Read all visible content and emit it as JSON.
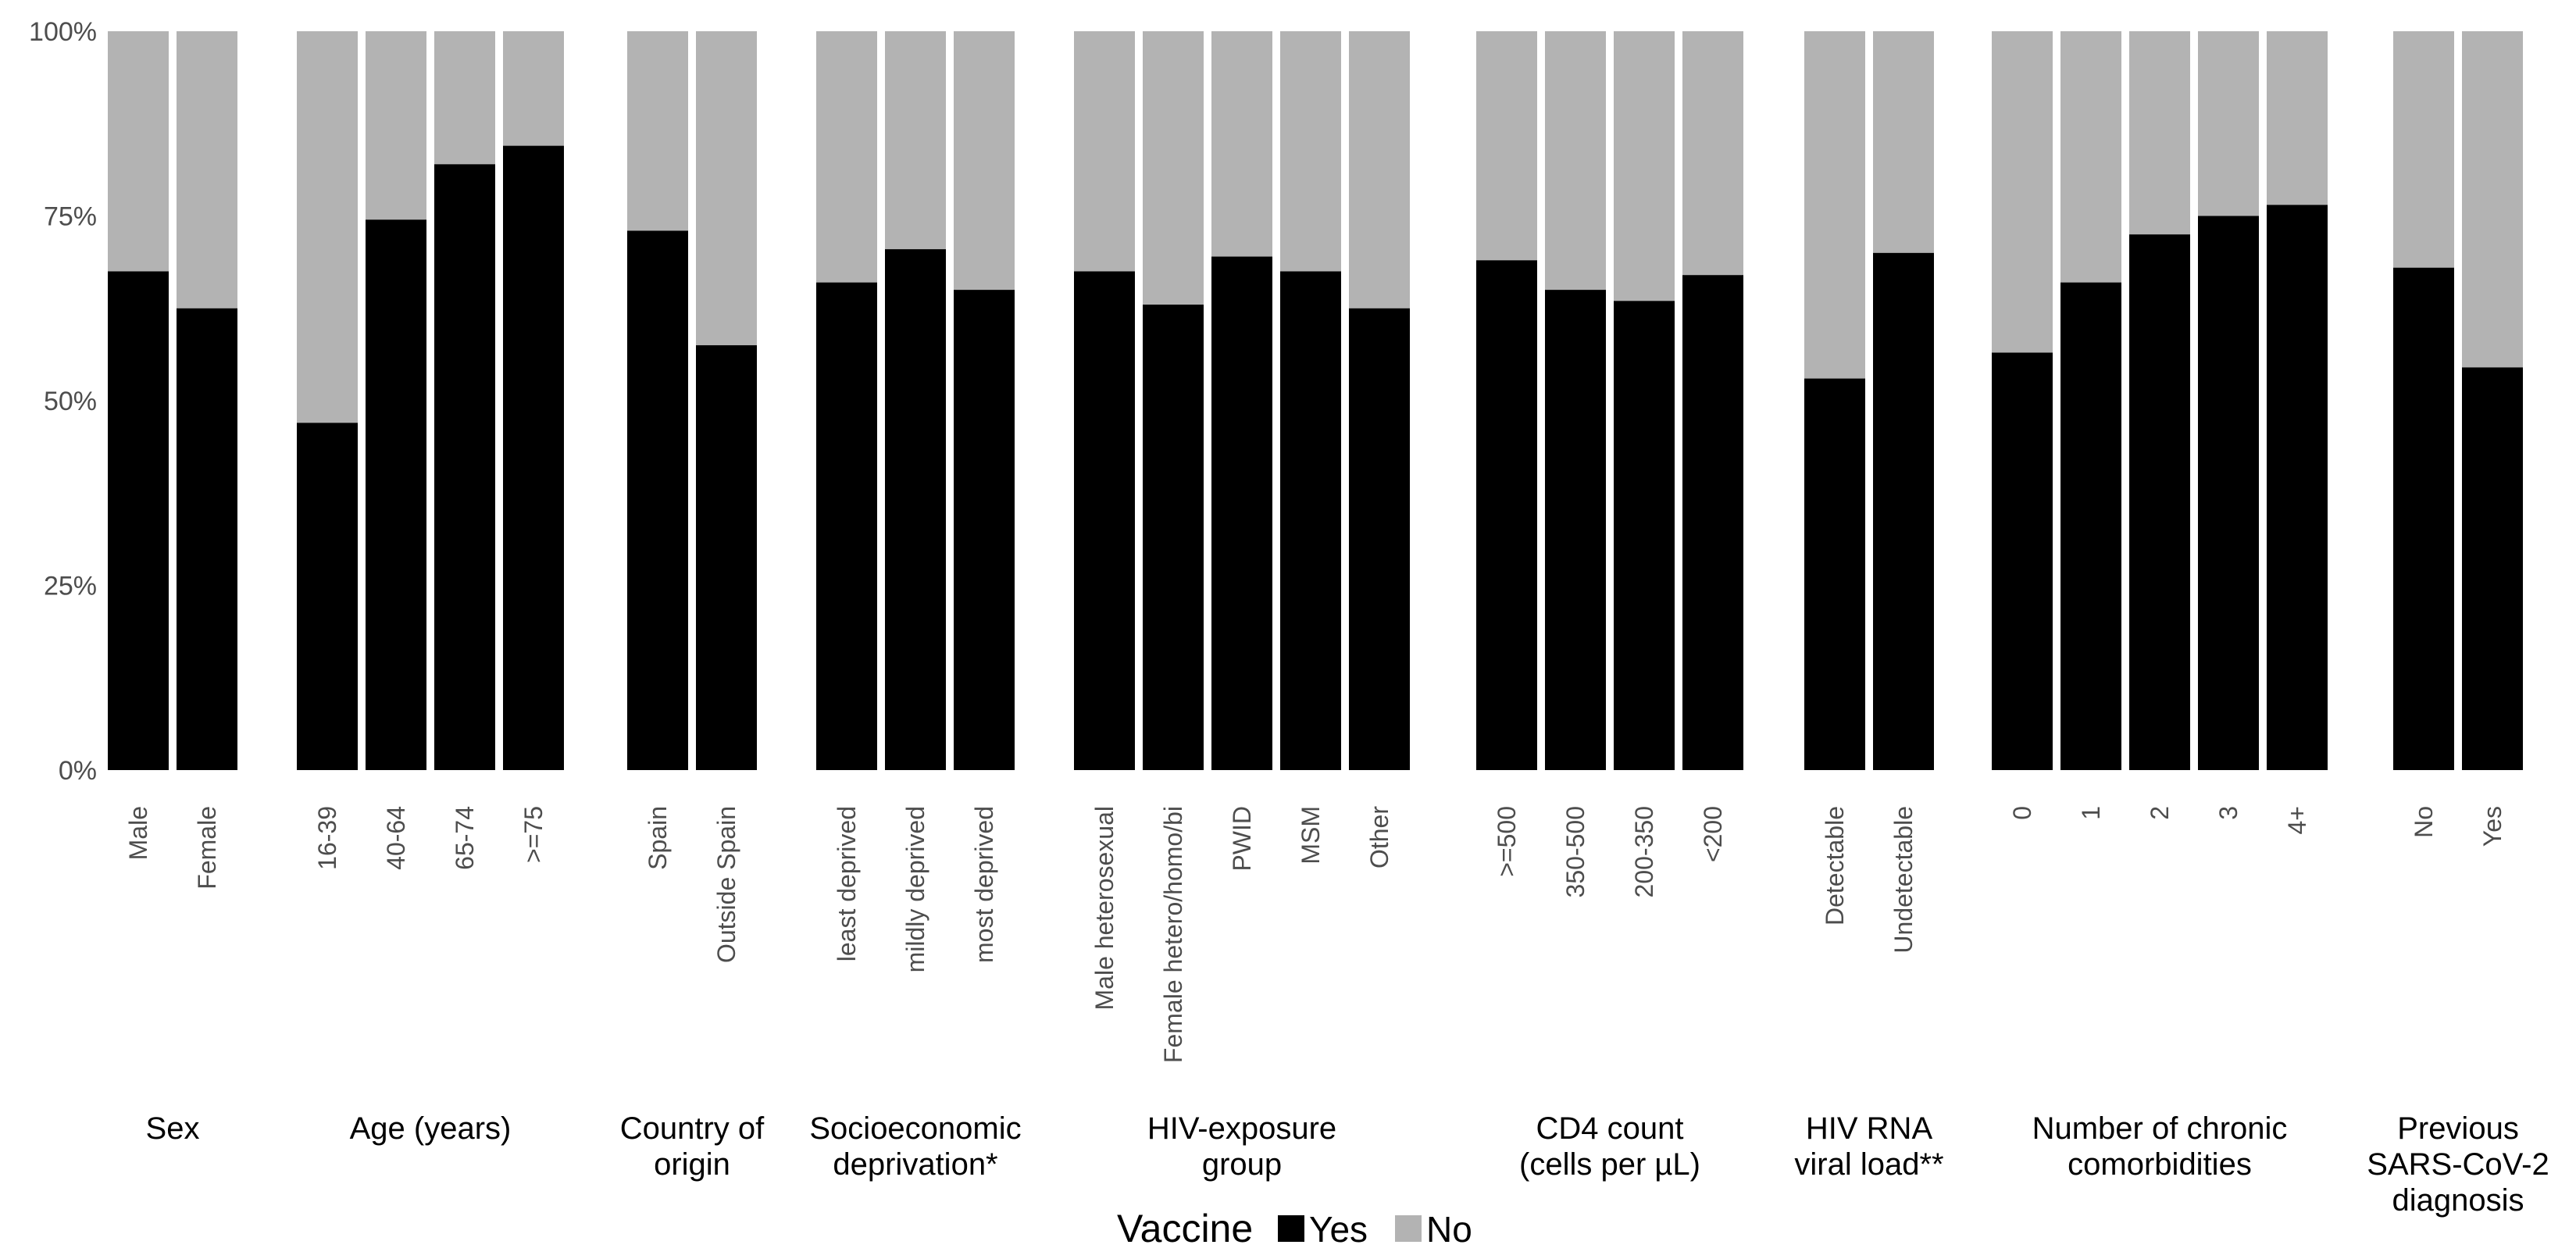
{
  "chart_data": {
    "type": "bar",
    "stacked": true,
    "percent": true,
    "ylim": [
      0,
      100
    ],
    "yticks": [
      "0%",
      "25%",
      "50%",
      "75%",
      "100%"
    ],
    "ytick_values": [
      0,
      25,
      50,
      75,
      100
    ],
    "colors": {
      "Yes": "#000000",
      "No": "#b3b3b3"
    },
    "legend": {
      "title": "Vaccine",
      "placement": "bottom",
      "entries": [
        "Yes",
        "No"
      ]
    },
    "groups": [
      {
        "label": [
          "Sex"
        ],
        "categories": [
          "Male",
          "Female"
        ],
        "yes": [
          67.5,
          62.5
        ]
      },
      {
        "label": [
          "Age (years)"
        ],
        "categories": [
          "16-39",
          "40-64",
          "65-74",
          ">=75"
        ],
        "yes": [
          47,
          74.5,
          82,
          84.5
        ]
      },
      {
        "label": [
          "Country of",
          "origin"
        ],
        "categories": [
          "Spain",
          "Outside Spain"
        ],
        "yes": [
          73,
          57.5
        ]
      },
      {
        "label": [
          "Socioeconomic",
          "deprivation*"
        ],
        "categories": [
          "least deprived",
          "mildly deprived",
          "most deprived"
        ],
        "yes": [
          66,
          70.5,
          65
        ]
      },
      {
        "label": [
          "HIV-exposure",
          "group"
        ],
        "categories": [
          "Male heterosexual",
          "Female hetero/homo/bi",
          "PWID",
          "MSM",
          "Other"
        ],
        "yes": [
          67.5,
          63,
          69.5,
          67.5,
          62.5
        ]
      },
      {
        "label": [
          "CD4 count",
          "(cells per µL)"
        ],
        "categories": [
          ">=500",
          "350-500",
          "200-350",
          "<200"
        ],
        "yes": [
          69,
          65,
          63.5,
          67
        ]
      },
      {
        "label": [
          "HIV RNA",
          "viral load**"
        ],
        "categories": [
          "Detectable",
          "Undetectable"
        ],
        "yes": [
          53,
          70
        ]
      },
      {
        "label": [
          "Number of chronic",
          "comorbidities"
        ],
        "categories": [
          "0",
          "1",
          "2",
          "3",
          "4+"
        ],
        "yes": [
          56.5,
          66,
          72.5,
          75,
          76.5
        ]
      },
      {
        "label": [
          "Previous",
          "SARS-CoV-2",
          "diagnosis"
        ],
        "categories": [
          "No",
          "Yes"
        ],
        "yes": [
          68,
          54.5
        ]
      }
    ]
  }
}
